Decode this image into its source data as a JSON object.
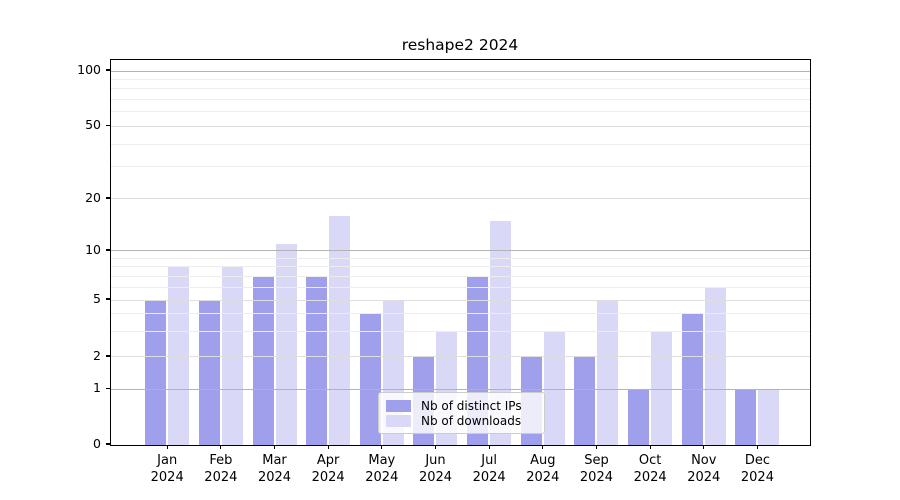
{
  "title": "reshape2 2024",
  "chart_data": {
    "type": "bar",
    "title": "reshape2 2024",
    "categories": [
      "Jan 2024",
      "Feb 2024",
      "Mar 2024",
      "Apr 2024",
      "May 2024",
      "Jun 2024",
      "Jul 2024",
      "Aug 2024",
      "Sep 2024",
      "Oct 2024",
      "Nov 2024",
      "Dec 2024"
    ],
    "month_labels": [
      "Jan",
      "Feb",
      "Mar",
      "Apr",
      "May",
      "Jun",
      "Jul",
      "Aug",
      "Sep",
      "Oct",
      "Nov",
      "Dec"
    ],
    "year_label": "2024",
    "series": [
      {
        "name": "Nb of distinct IPs",
        "color": "#9f9fec",
        "values": [
          5,
          5,
          7,
          7,
          4,
          2,
          7,
          2,
          2,
          1,
          4,
          1
        ]
      },
      {
        "name": "Nb of downloads",
        "color": "#d9d9f7",
        "values": [
          8,
          8,
          11,
          16,
          5,
          3,
          15,
          3,
          5,
          3,
          6,
          1
        ]
      }
    ],
    "xlabel": "",
    "ylabel": "",
    "yscale": "log-like with zero baseline",
    "y_ticks": [
      0,
      1,
      2,
      5,
      10,
      20,
      50,
      100
    ],
    "y_minor_ticks": [
      3,
      4,
      6,
      7,
      8,
      9,
      30,
      40,
      60,
      70,
      80,
      90
    ],
    "ylim": [
      0,
      115
    ],
    "grid": true,
    "legend_position": "lower center"
  },
  "colors": {
    "major_gridline": "#b3b3b3",
    "mid_gridline": "#dedede",
    "minor_gridline": "#ededed",
    "spine": "#000000"
  }
}
